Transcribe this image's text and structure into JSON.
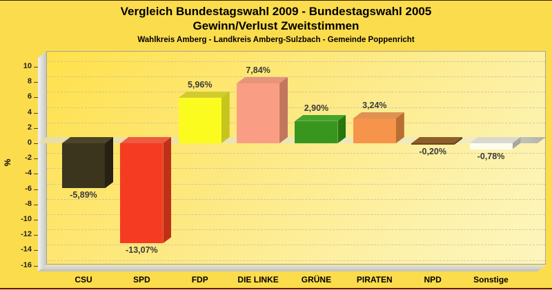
{
  "page": {
    "background_color": "#fbdc4d",
    "border_bottom_color": "#651313"
  },
  "header": {
    "title_line1": "Vergleich Bundestagswahl 2009 - Bundestagswahl 2005",
    "title_line2": "Gewinn/Verlust Zweitstimmen",
    "subtitle": "Wahlkreis Amberg - Landkreis Amberg-Sulzbach - Gemeinde Poppenricht"
  },
  "chart_data": {
    "type": "bar",
    "style": "3d-bars",
    "title": "Vergleich Bundestagswahl 2009 - Bundestagswahl 2005",
    "subtitle2": "Gewinn/Verlust Zweitstimmen",
    "subtitle3": "Wahlkreis Amberg - Landkreis Amberg-Sulzbach - Gemeinde Poppenricht",
    "categories": [
      "CSU",
      "SPD",
      "FDP",
      "DIE LINKE",
      "GRÜNE",
      "PIRATEN",
      "NPD",
      "Sonstige"
    ],
    "values": [
      -5.89,
      -13.07,
      5.96,
      7.84,
      2.9,
      3.24,
      -0.2,
      -0.78
    ],
    "value_labels": [
      "-5,89%",
      "-13,07%",
      "5,96%",
      "7,84%",
      "2,90%",
      "3,24%",
      "-0,20%",
      "-0,78%"
    ],
    "xlabel": "",
    "ylabel": "%",
    "ylim": [
      -16,
      10
    ],
    "yticks": [
      10,
      8,
      6,
      4,
      2,
      0,
      -2,
      -4,
      -6,
      -8,
      -10,
      -12,
      -14,
      -16
    ],
    "grid": "horizontal dashed",
    "legend": "none",
    "plot_bg_gradient": [
      "#ffe14b",
      "#fdf5bd"
    ],
    "bar_colors": [
      {
        "front": "#3b351d",
        "top": "#4c452a",
        "side": "#262112"
      },
      {
        "front": "#f53c22",
        "top": "#ee5a41",
        "side": "#c03018"
      },
      {
        "front": "#fbfb20",
        "top": "#d0cc2e",
        "side": "#c5c51d"
      },
      {
        "front": "#f99e84",
        "top": "#e8937c",
        "side": "#c1765e"
      },
      {
        "front": "#38961f",
        "top": "#46a42d",
        "side": "#25770f"
      },
      {
        "front": "#f5944a",
        "top": "#e09253",
        "side": "#b96f33"
      },
      {
        "front": "#6e4515",
        "top": "#8c5f2a",
        "side": "#553509"
      },
      {
        "front": "#fdfdee",
        "top": "#d9d9cf",
        "side": "#a7a79f"
      }
    ]
  }
}
